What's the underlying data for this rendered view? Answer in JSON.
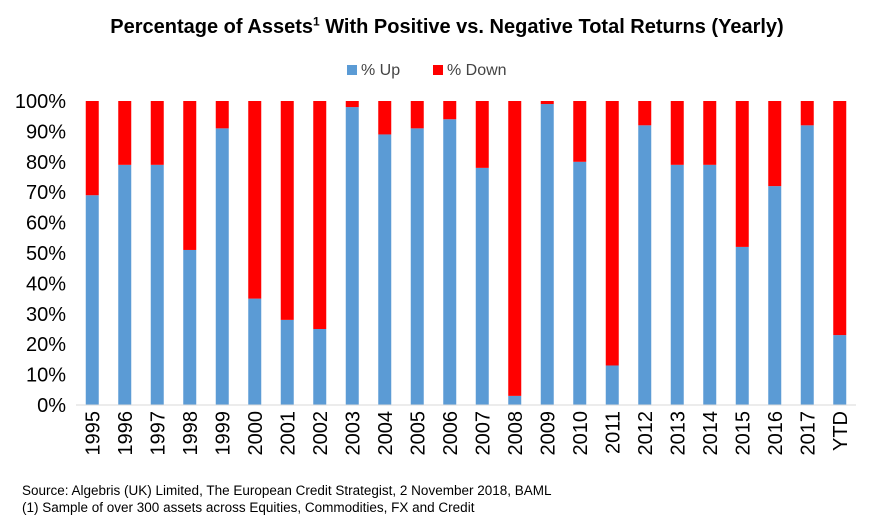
{
  "header": {
    "title_main": "Percentage of Assets",
    "title_sup": "1",
    "title_rest": " With Positive vs. Negative Total Returns (Yearly)"
  },
  "footer": {
    "source": "Source: Algebris (UK) Limited, The European Credit Strategist, 2 November 2018, BAML",
    "note": "(1) Sample of over 300 assets across Equities, Commodities, FX and Credit"
  },
  "colors": {
    "up": "#5b9bd5",
    "down": "#ff0000"
  },
  "chart_data": {
    "type": "bar",
    "stacked": true,
    "title": "Percentage of Assets1 With Positive vs. Negative Total Returns (Yearly)",
    "categories": [
      "1995",
      "1996",
      "1997",
      "1998",
      "1999",
      "2000",
      "2001",
      "2002",
      "2003",
      "2004",
      "2005",
      "2006",
      "2007",
      "2008",
      "2009",
      "2010",
      "2011",
      "2012",
      "2013",
      "2014",
      "2015",
      "2016",
      "2017",
      "YTD"
    ],
    "series": [
      {
        "name": "% Up",
        "values": [
          69,
          79,
          79,
          51,
          91,
          35,
          28,
          25,
          98,
          89,
          91,
          94,
          78,
          3,
          99,
          80,
          13,
          92,
          79,
          79,
          52,
          72,
          92,
          23
        ]
      },
      {
        "name": "% Down",
        "values": [
          31,
          21,
          21,
          49,
          9,
          65,
          72,
          75,
          2,
          11,
          9,
          6,
          22,
          97,
          1,
          20,
          87,
          8,
          21,
          21,
          48,
          28,
          8,
          77
        ]
      }
    ],
    "ylim": [
      0,
      100
    ],
    "yticks": [
      "0%",
      "10%",
      "20%",
      "30%",
      "40%",
      "50%",
      "60%",
      "70%",
      "80%",
      "90%",
      "100%"
    ],
    "legend_position": "top",
    "grid": false,
    "xlabel": "",
    "ylabel": ""
  }
}
